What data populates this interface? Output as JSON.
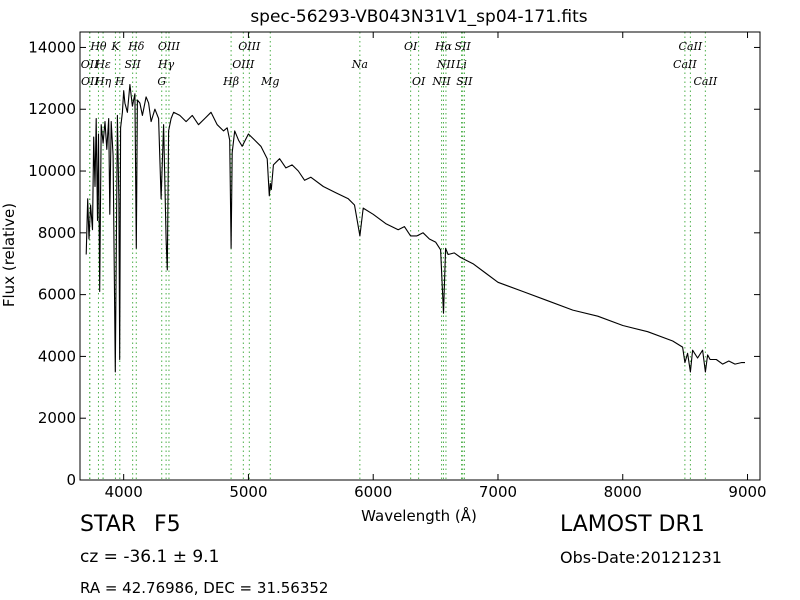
{
  "chart_data": {
    "type": "line",
    "title": "spec-56293-VB043N31V1_sp04-171.fits",
    "xlabel": "Wavelength (Å)",
    "ylabel": "Flux (relative)",
    "xlim": [
      3650,
      9100
    ],
    "ylim": [
      0,
      14500
    ],
    "xticks": [
      4000,
      5000,
      6000,
      7000,
      8000,
      9000
    ],
    "yticks": [
      0,
      2000,
      4000,
      6000,
      8000,
      10000,
      12000,
      14000
    ],
    "grid": false,
    "line_color": "#000000",
    "marker_color": "#4daf4a",
    "series": [
      {
        "x": [
          3700,
          3712,
          3722,
          3735,
          3750,
          3760,
          3770,
          3780,
          3790,
          3798,
          3808,
          3820,
          3835,
          3850,
          3865,
          3880,
          3889,
          3900,
          3915,
          3933,
          3950,
          3962,
          3968,
          3975,
          3990,
          4000,
          4010,
          4030,
          4050,
          4070,
          4090,
          4101,
          4110,
          4130,
          4150,
          4180,
          4200,
          4220,
          4250,
          4280,
          4300,
          4320,
          4340,
          4350,
          4360,
          4380,
          4400,
          4450,
          4500,
          4550,
          4600,
          4650,
          4700,
          4750,
          4800,
          4830,
          4850,
          4861,
          4870,
          4890,
          4920,
          4950,
          5000,
          5050,
          5100,
          5150,
          5167,
          5175,
          5183,
          5200,
          5250,
          5300,
          5350,
          5400,
          5450,
          5500,
          5600,
          5700,
          5800,
          5850,
          5893,
          5920,
          6000,
          6100,
          6200,
          6250,
          6300,
          6350,
          6400,
          6450,
          6500,
          6540,
          6563,
          6580,
          6600,
          6650,
          6700,
          6800,
          6900,
          7000,
          7200,
          7400,
          7600,
          7800,
          8000,
          8200,
          8400,
          8480,
          8498,
          8520,
          8542,
          8560,
          8600,
          8640,
          8662,
          8680,
          8700,
          8750,
          8800,
          8850,
          8900,
          8950,
          8980
        ],
        "y": [
          7300,
          9100,
          7800,
          8900,
          8100,
          11100,
          9500,
          11700,
          8400,
          11200,
          6100,
          11500,
          10900,
          11600,
          10700,
          11700,
          8600,
          11600,
          10500,
          3500,
          11800,
          9000,
          3900,
          11400,
          11900,
          12600,
          12200,
          11900,
          12800,
          12100,
          12500,
          7500,
          12300,
          12200,
          11800,
          12400,
          12200,
          11600,
          12000,
          11700,
          9100,
          11500,
          7800,
          6800,
          11300,
          11700,
          11900,
          11800,
          11600,
          11800,
          11500,
          11700,
          11900,
          11500,
          11300,
          11400,
          11000,
          7500,
          10600,
          11300,
          11000,
          10800,
          11200,
          11000,
          10800,
          10400,
          9200,
          9600,
          9400,
          10200,
          10400,
          10100,
          10200,
          10000,
          9700,
          9800,
          9500,
          9300,
          9100,
          8900,
          7900,
          8800,
          8600,
          8300,
          8100,
          8200,
          7900,
          7900,
          8000,
          7800,
          7700,
          7450,
          5400,
          7500,
          7300,
          7350,
          7200,
          7000,
          6700,
          6400,
          6100,
          5800,
          5500,
          5300,
          5000,
          4800,
          4500,
          4300,
          3800,
          4100,
          3500,
          4200,
          3950,
          4200,
          3500,
          4050,
          3900,
          3900,
          3750,
          3850,
          3750,
          3800,
          3800
        ]
      }
    ],
    "lines": [
      {
        "label": "Hθ",
        "x": 3798,
        "row": 1
      },
      {
        "label": "K",
        "x": 3934,
        "row": 1
      },
      {
        "label": "Hδ",
        "x": 4101,
        "row": 1
      },
      {
        "label": "OIII",
        "x": 4363,
        "row": 1
      },
      {
        "label": "OIII",
        "x": 5007,
        "row": 1
      },
      {
        "label": "OI",
        "x": 6300,
        "row": 1
      },
      {
        "label": "Hα",
        "x": 6563,
        "row": 1
      },
      {
        "label": "SII",
        "x": 6717,
        "row": 1
      },
      {
        "label": "CaII",
        "x": 8542,
        "row": 1
      },
      {
        "label": "OII",
        "x": 3727,
        "row": 2
      },
      {
        "label": "Hε",
        "x": 3835,
        "row": 2
      },
      {
        "label": "SII",
        "x": 4072,
        "row": 2
      },
      {
        "label": "Hγ",
        "x": 4340,
        "row": 2
      },
      {
        "label": "OIII",
        "x": 4959,
        "row": 2
      },
      {
        "label": "Na",
        "x": 5893,
        "row": 2
      },
      {
        "label": "NII",
        "x": 6583,
        "row": 2
      },
      {
        "label": "Li",
        "x": 6708,
        "row": 2
      },
      {
        "label": "CaII",
        "x": 8498,
        "row": 2
      },
      {
        "label": "OII",
        "x": 3729,
        "row": 3
      },
      {
        "label": "Hη",
        "x": 3835,
        "row": 3
      },
      {
        "label": "H",
        "x": 3969,
        "row": 3
      },
      {
        "label": "G",
        "x": 4305,
        "row": 3
      },
      {
        "label": "Hβ",
        "x": 4861,
        "row": 3
      },
      {
        "label": "Mg",
        "x": 5175,
        "row": 3
      },
      {
        "label": "OI",
        "x": 6364,
        "row": 3
      },
      {
        "label": "NII",
        "x": 6548,
        "row": 3
      },
      {
        "label": "SII",
        "x": 6731,
        "row": 3
      },
      {
        "label": "CaII",
        "x": 8662,
        "row": 3
      }
    ]
  },
  "info": {
    "object_type": "STAR",
    "subclass": "F5",
    "cz": "cz = -36.1 ± 9.1",
    "coords": "RA = 42.76986, DEC = 31.56352",
    "survey": "LAMOST DR1",
    "obs_date": "Obs-Date:20121231"
  }
}
